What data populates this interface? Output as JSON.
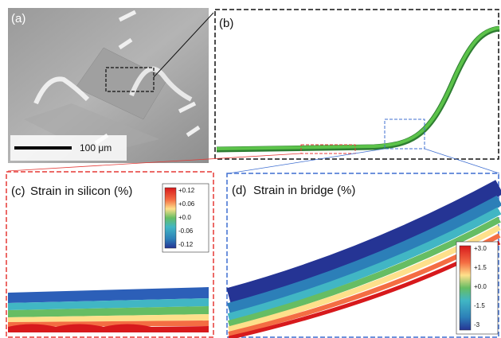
{
  "panels": {
    "a": {
      "label": "(a)",
      "scale_bar": "100 μm"
    },
    "b": {
      "label": "(b)"
    },
    "c": {
      "label": "(c)",
      "title": "Strain in silicon (%)",
      "colorbar": [
        "+0.12",
        "+0.06",
        "+0.0",
        "-0.06",
        "-0.12"
      ]
    },
    "d": {
      "label": "(d)",
      "title": "Strain in bridge (%)",
      "colorbar": [
        "+3.0",
        "+1.5",
        "+0.0",
        "-1.5",
        "-3"
      ]
    }
  }
}
